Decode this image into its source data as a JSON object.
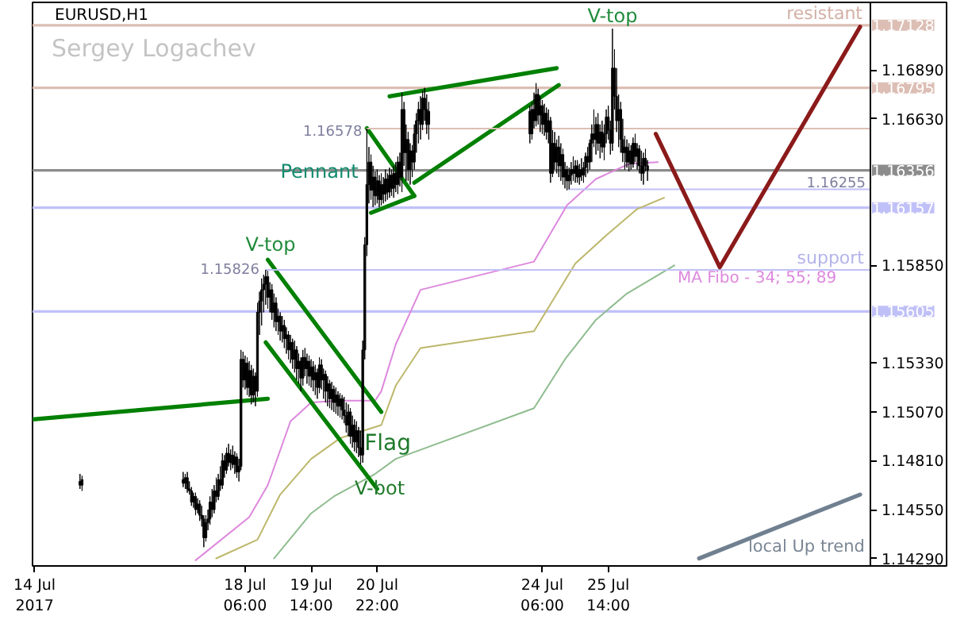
{
  "chart_data": {
    "type": "candlestick",
    "title": "EURUSD,H1",
    "color": "#000000",
    "xlim": [
      "2017-07-13T23:00",
      "2017-07-30T21:00"
    ],
    "ylim": [
      1.1425,
      1.1725
    ],
    "xticks": [
      {
        "value": "2017-07-14",
        "label": "14 Jul 2017"
      },
      {
        "value": "2017-07-18T06:00",
        "label": "18 Jul 06:00"
      },
      {
        "value": "2017-07-19T14:00",
        "label": "19 Jul 14:00"
      },
      {
        "value": "2017-07-20T22:00",
        "label": "20 Jul 22:00"
      },
      {
        "value": "2017-07-24T06:00",
        "label": "24 Jul 06:00"
      },
      {
        "value": "2017-07-25T14:00",
        "label": "25 Jul 14:00"
      }
    ],
    "yticks": [
      {
        "value": 1.1429,
        "label": "1.14290"
      },
      {
        "value": 1.1455,
        "label": "1.14550"
      },
      {
        "value": 1.1481,
        "label": "1.14810"
      },
      {
        "value": 1.1507,
        "label": "1.15070"
      },
      {
        "value": 1.1533,
        "label": "1.15330"
      },
      {
        "value": 1.1585,
        "label": "1.15850"
      },
      {
        "value": 1.1663,
        "label": "1.16630"
      },
      {
        "value": 1.1689,
        "label": "1.16890"
      }
    ],
    "x": [
      "2017-07-14T22:00",
      "2017-07-14T23:00",
      "2017-07-17T00:00",
      "2017-07-17T01:00",
      "2017-07-17T02:00",
      "2017-07-17T03:00",
      "2017-07-17T04:00",
      "2017-07-17T05:00",
      "2017-07-17T06:00",
      "2017-07-17T07:00",
      "2017-07-17T08:00",
      "2017-07-17T09:00",
      "2017-07-17T10:00",
      "2017-07-17T11:00",
      "2017-07-17T12:00",
      "2017-07-17T13:00",
      "2017-07-17T14:00",
      "2017-07-17T15:00",
      "2017-07-17T16:00",
      "2017-07-17T17:00",
      "2017-07-17T18:00",
      "2017-07-17T19:00",
      "2017-07-17T20:00",
      "2017-07-17T21:00",
      "2017-07-17T22:00",
      "2017-07-17T23:00",
      "2017-07-18T00:00",
      "2017-07-18T01:00",
      "2017-07-18T02:00",
      "2017-07-18T03:00",
      "2017-07-18T04:00",
      "2017-07-18T05:00",
      "2017-07-18T06:00",
      "2017-07-18T07:00",
      "2017-07-18T08:00",
      "2017-07-18T09:00",
      "2017-07-18T10:00",
      "2017-07-18T11:00",
      "2017-07-18T12:00",
      "2017-07-18T13:00",
      "2017-07-18T14:00",
      "2017-07-18T15:00",
      "2017-07-18T16:00",
      "2017-07-18T17:00",
      "2017-07-18T18:00",
      "2017-07-18T19:00",
      "2017-07-18T20:00",
      "2017-07-18T21:00",
      "2017-07-18T22:00",
      "2017-07-18T23:00",
      "2017-07-19T00:00",
      "2017-07-19T01:00",
      "2017-07-19T02:00",
      "2017-07-19T03:00",
      "2017-07-19T04:00",
      "2017-07-19T05:00",
      "2017-07-19T06:00",
      "2017-07-19T07:00",
      "2017-07-19T08:00",
      "2017-07-19T09:00",
      "2017-07-19T10:00",
      "2017-07-19T11:00",
      "2017-07-19T12:00",
      "2017-07-19T13:00",
      "2017-07-19T14:00",
      "2017-07-19T15:00",
      "2017-07-19T16:00",
      "2017-07-19T17:00",
      "2017-07-19T18:00",
      "2017-07-19T19:00",
      "2017-07-19T20:00",
      "2017-07-19T21:00",
      "2017-07-19T22:00",
      "2017-07-19T23:00",
      "2017-07-20T00:00",
      "2017-07-20T01:00",
      "2017-07-20T02:00",
      "2017-07-20T03:00",
      "2017-07-20T04:00",
      "2017-07-20T05:00",
      "2017-07-20T06:00",
      "2017-07-20T07:00",
      "2017-07-20T08:00",
      "2017-07-20T09:00",
      "2017-07-20T10:00",
      "2017-07-20T11:00",
      "2017-07-20T12:00",
      "2017-07-20T13:00",
      "2017-07-20T14:00",
      "2017-07-20T15:00",
      "2017-07-20T16:00",
      "2017-07-20T17:00",
      "2017-07-20T18:00",
      "2017-07-20T19:00",
      "2017-07-20T20:00",
      "2017-07-20T21:00",
      "2017-07-20T22:00",
      "2017-07-20T23:00",
      "2017-07-21T00:00",
      "2017-07-21T01:00",
      "2017-07-21T02:00",
      "2017-07-21T03:00",
      "2017-07-21T04:00",
      "2017-07-21T05:00",
      "2017-07-21T06:00",
      "2017-07-21T07:00",
      "2017-07-21T08:00",
      "2017-07-21T09:00",
      "2017-07-21T10:00",
      "2017-07-21T11:00",
      "2017-07-21T12:00",
      "2017-07-21T13:00",
      "2017-07-21T14:00",
      "2017-07-21T15:00",
      "2017-07-21T16:00",
      "2017-07-21T17:00",
      "2017-07-21T18:00",
      "2017-07-21T19:00",
      "2017-07-21T20:00",
      "2017-07-21T21:00",
      "2017-07-21T22:00",
      "2017-07-21T23:00",
      "2017-07-24T00:00",
      "2017-07-24T01:00",
      "2017-07-24T02:00",
      "2017-07-24T03:00",
      "2017-07-24T04:00",
      "2017-07-24T05:00",
      "2017-07-24T06:00",
      "2017-07-24T07:00",
      "2017-07-24T08:00",
      "2017-07-24T09:00",
      "2017-07-24T10:00",
      "2017-07-24T11:00",
      "2017-07-24T12:00",
      "2017-07-24T13:00",
      "2017-07-24T14:00",
      "2017-07-24T15:00",
      "2017-07-24T16:00",
      "2017-07-24T17:00",
      "2017-07-24T18:00",
      "2017-07-24T19:00",
      "2017-07-24T20:00",
      "2017-07-24T21:00",
      "2017-07-24T22:00",
      "2017-07-24T23:00",
      "2017-07-25T00:00",
      "2017-07-25T01:00",
      "2017-07-25T02:00",
      "2017-07-25T03:00",
      "2017-07-25T04:00",
      "2017-07-25T05:00",
      "2017-07-25T06:00",
      "2017-07-25T07:00",
      "2017-07-25T08:00",
      "2017-07-25T09:00",
      "2017-07-25T10:00",
      "2017-07-25T11:00",
      "2017-07-25T12:00",
      "2017-07-25T13:00",
      "2017-07-25T14:00",
      "2017-07-25T15:00",
      "2017-07-25T16:00",
      "2017-07-25T17:00",
      "2017-07-25T18:00",
      "2017-07-25T19:00",
      "2017-07-25T20:00",
      "2017-07-25T21:00",
      "2017-07-25T22:00",
      "2017-07-25T23:00",
      "2017-07-26T00:00",
      "2017-07-26T01:00",
      "2017-07-26T02:00",
      "2017-07-26T03:00",
      "2017-07-26T04:00",
      "2017-07-26T05:00",
      "2017-07-26T06:00",
      "2017-07-26T07:00",
      "2017-07-26T08:00",
      "2017-07-26T09:00"
    ],
    "ohlc": [
      [
        1.147,
        1.1474,
        1.1466,
        1.1468
      ],
      [
        1.1468,
        1.1473,
        1.1465,
        1.1471
      ],
      [
        1.1471,
        1.1475,
        1.1467,
        1.1469
      ],
      [
        1.1469,
        1.1474,
        1.1466,
        1.1472
      ],
      [
        1.1472,
        1.1475,
        1.1464,
        1.1466
      ],
      [
        1.1466,
        1.147,
        1.1463,
        1.1465
      ],
      [
        1.1465,
        1.1467,
        1.1457,
        1.1459
      ],
      [
        1.1459,
        1.1464,
        1.1456,
        1.1462
      ],
      [
        1.1462,
        1.1464,
        1.1452,
        1.1455
      ],
      [
        1.1455,
        1.1461,
        1.1453,
        1.1458
      ],
      [
        1.1458,
        1.146,
        1.1449,
        1.1452
      ],
      [
        1.1452,
        1.1457,
        1.1446,
        1.145
      ],
      [
        1.145,
        1.1452,
        1.1435,
        1.144
      ],
      [
        1.144,
        1.1452,
        1.1438,
        1.1448
      ],
      [
        1.1448,
        1.1455,
        1.1444,
        1.145
      ],
      [
        1.145,
        1.1462,
        1.1447,
        1.1459
      ],
      [
        1.1459,
        1.1466,
        1.1451,
        1.1455
      ],
      [
        1.1455,
        1.1468,
        1.1453,
        1.1465
      ],
      [
        1.1465,
        1.1472,
        1.1459,
        1.1462
      ],
      [
        1.1462,
        1.1474,
        1.146,
        1.1471
      ],
      [
        1.1471,
        1.1478,
        1.1465,
        1.1468
      ],
      [
        1.1468,
        1.1485,
        1.1466,
        1.1481
      ],
      [
        1.1481,
        1.1484,
        1.1472,
        1.1476
      ],
      [
        1.1476,
        1.1488,
        1.1474,
        1.1485
      ],
      [
        1.1485,
        1.149,
        1.1478,
        1.148
      ],
      [
        1.148,
        1.1487,
        1.1476,
        1.1484
      ],
      [
        1.1484,
        1.1489,
        1.1477,
        1.1479
      ],
      [
        1.1479,
        1.1486,
        1.1474,
        1.1483
      ],
      [
        1.1483,
        1.1485,
        1.1472,
        1.1475
      ],
      [
        1.1475,
        1.1482,
        1.147,
        1.1478
      ],
      [
        1.1478,
        1.154,
        1.1476,
        1.1535
      ],
      [
        1.1535,
        1.1539,
        1.152,
        1.1524
      ],
      [
        1.1524,
        1.1537,
        1.1519,
        1.1533
      ],
      [
        1.1533,
        1.1536,
        1.1516,
        1.152
      ],
      [
        1.152,
        1.1534,
        1.1515,
        1.1529
      ],
      [
        1.1529,
        1.1532,
        1.1511,
        1.1516
      ],
      [
        1.1516,
        1.153,
        1.1512,
        1.1526
      ],
      [
        1.1526,
        1.1528,
        1.151,
        1.1518
      ],
      [
        1.1518,
        1.1565,
        1.1515,
        1.156
      ],
      [
        1.156,
        1.1571,
        1.1548,
        1.1566
      ],
      [
        1.1566,
        1.1578,
        1.1553,
        1.1572
      ],
      [
        1.1572,
        1.158,
        1.156,
        1.1575
      ],
      [
        1.1575,
        1.15826,
        1.1564,
        1.1579
      ],
      [
        1.1579,
        1.1582,
        1.1562,
        1.1568
      ],
      [
        1.1568,
        1.1576,
        1.156,
        1.1572
      ],
      [
        1.1572,
        1.1575,
        1.1556,
        1.156
      ],
      [
        1.156,
        1.157,
        1.1552,
        1.1565
      ],
      [
        1.1565,
        1.1568,
        1.155,
        1.1555
      ],
      [
        1.1555,
        1.1562,
        1.1548,
        1.1558
      ],
      [
        1.1558,
        1.156,
        1.1545,
        1.155
      ],
      [
        1.155,
        1.1558,
        1.1544,
        1.1553
      ],
      [
        1.1553,
        1.1556,
        1.1541,
        1.1546
      ],
      [
        1.1546,
        1.1552,
        1.1538,
        1.1548
      ],
      [
        1.1548,
        1.155,
        1.1535,
        1.154
      ],
      [
        1.154,
        1.1548,
        1.1533,
        1.1544
      ],
      [
        1.1544,
        1.1546,
        1.153,
        1.1535
      ],
      [
        1.1535,
        1.1545,
        1.1528,
        1.154
      ],
      [
        1.154,
        1.1542,
        1.1524,
        1.153
      ],
      [
        1.153,
        1.1538,
        1.1522,
        1.1534
      ],
      [
        1.1534,
        1.1536,
        1.1518,
        1.1525
      ],
      [
        1.1525,
        1.154,
        1.1521,
        1.1536
      ],
      [
        1.1536,
        1.1541,
        1.1526,
        1.153
      ],
      [
        1.153,
        1.1538,
        1.1522,
        1.1534
      ],
      [
        1.1534,
        1.1537,
        1.1521,
        1.1526
      ],
      [
        1.1526,
        1.1535,
        1.152,
        1.1531
      ],
      [
        1.1531,
        1.1534,
        1.1518,
        1.1524
      ],
      [
        1.1524,
        1.1532,
        1.1516,
        1.1528
      ],
      [
        1.1528,
        1.153,
        1.1514,
        1.152
      ],
      [
        1.152,
        1.1536,
        1.1517,
        1.1532
      ],
      [
        1.1532,
        1.1535,
        1.1519,
        1.1524
      ],
      [
        1.1524,
        1.153,
        1.1514,
        1.1527
      ],
      [
        1.1527,
        1.1529,
        1.1512,
        1.1518
      ],
      [
        1.1518,
        1.1526,
        1.151,
        1.1522
      ],
      [
        1.1522,
        1.1524,
        1.1509,
        1.1514
      ],
      [
        1.1514,
        1.1523,
        1.1508,
        1.1519
      ],
      [
        1.1519,
        1.1521,
        1.1507,
        1.1512
      ],
      [
        1.1512,
        1.152,
        1.1506,
        1.1516
      ],
      [
        1.1516,
        1.1518,
        1.1505,
        1.151
      ],
      [
        1.151,
        1.1517,
        1.1504,
        1.1514
      ],
      [
        1.1514,
        1.1516,
        1.1503,
        1.1508
      ],
      [
        1.1508,
        1.1515,
        1.1501,
        1.1505
      ],
      [
        1.1505,
        1.1512,
        1.1496,
        1.15
      ],
      [
        1.15,
        1.1511,
        1.1494,
        1.1507
      ],
      [
        1.1507,
        1.1509,
        1.149,
        1.1494
      ],
      [
        1.1494,
        1.1505,
        1.1488,
        1.15
      ],
      [
        1.15,
        1.1503,
        1.1486,
        1.1491
      ],
      [
        1.1491,
        1.1502,
        1.1485,
        1.1497
      ],
      [
        1.1497,
        1.1499,
        1.1483,
        1.1488
      ],
      [
        1.1488,
        1.1497,
        1.1479,
        1.1484
      ],
      [
        1.1484,
        1.1545,
        1.148,
        1.154
      ],
      [
        1.154,
        1.16,
        1.1535,
        1.1596
      ],
      [
        1.1596,
        1.16578,
        1.159,
        1.1628
      ],
      [
        1.1628,
        1.1648,
        1.1618,
        1.164
      ],
      [
        1.164,
        1.1644,
        1.162,
        1.1625
      ],
      [
        1.1625,
        1.1638,
        1.1616,
        1.1632
      ],
      [
        1.1632,
        1.1635,
        1.1617,
        1.1622
      ],
      [
        1.1622,
        1.1636,
        1.1618,
        1.163
      ],
      [
        1.163,
        1.1633,
        1.1616,
        1.162
      ],
      [
        1.162,
        1.1634,
        1.1617,
        1.1628
      ],
      [
        1.1628,
        1.1632,
        1.1618,
        1.1623
      ],
      [
        1.1623,
        1.1636,
        1.1619,
        1.1631
      ],
      [
        1.1631,
        1.1634,
        1.162,
        1.1624
      ],
      [
        1.1624,
        1.1637,
        1.1621,
        1.1633
      ],
      [
        1.1633,
        1.1636,
        1.1622,
        1.1626
      ],
      [
        1.1626,
        1.1638,
        1.1621,
        1.1634
      ],
      [
        1.1634,
        1.164,
        1.1624,
        1.1628
      ],
      [
        1.1628,
        1.1643,
        1.1623,
        1.164
      ],
      [
        1.164,
        1.1645,
        1.1627,
        1.1632
      ],
      [
        1.1632,
        1.1677,
        1.1624,
        1.1668
      ],
      [
        1.1668,
        1.1672,
        1.1638,
        1.1645
      ],
      [
        1.1645,
        1.166,
        1.163,
        1.1652
      ],
      [
        1.1652,
        1.1656,
        1.163,
        1.1636
      ],
      [
        1.1636,
        1.165,
        1.1628,
        1.1646
      ],
      [
        1.1646,
        1.1649,
        1.1632,
        1.164
      ],
      [
        1.164,
        1.166,
        1.1636,
        1.1655
      ],
      [
        1.1655,
        1.1666,
        1.1645,
        1.1662
      ],
      [
        1.1662,
        1.1672,
        1.165,
        1.1668
      ],
      [
        1.1668,
        1.1675,
        1.1652,
        1.166
      ],
      [
        1.166,
        1.1678,
        1.1657,
        1.1674
      ],
      [
        1.1674,
        1.16795,
        1.1662,
        1.1668
      ],
      [
        1.1668,
        1.1676,
        1.1655,
        1.166
      ],
      [
        1.166,
        1.1672,
        1.1652,
        1.1667
      ],
      [
        1.1667,
        1.167,
        1.165,
        1.1655
      ],
      [
        1.1655,
        1.1672,
        1.1652,
        1.1668
      ],
      [
        1.1668,
        1.1677,
        1.1658,
        1.1662
      ],
      [
        1.1662,
        1.1682,
        1.1659,
        1.1676
      ],
      [
        1.1676,
        1.1679,
        1.166,
        1.1665
      ],
      [
        1.1665,
        1.1675,
        1.1656,
        1.167
      ],
      [
        1.167,
        1.1673,
        1.1655,
        1.166
      ],
      [
        1.166,
        1.1671,
        1.1654,
        1.1666
      ],
      [
        1.1666,
        1.1669,
        1.1652,
        1.1656
      ],
      [
        1.1656,
        1.1668,
        1.165,
        1.1662
      ],
      [
        1.1662,
        1.1664,
        1.1629,
        1.1634
      ],
      [
        1.1634,
        1.1657,
        1.1632,
        1.165
      ],
      [
        1.165,
        1.1656,
        1.1636,
        1.164
      ],
      [
        1.164,
        1.1652,
        1.1634,
        1.1648
      ],
      [
        1.1648,
        1.1654,
        1.1632,
        1.1638
      ],
      [
        1.1638,
        1.165,
        1.163,
        1.1644
      ],
      [
        1.1644,
        1.1647,
        1.1628,
        1.1632
      ],
      [
        1.1632,
        1.164,
        1.1626,
        1.1636
      ],
      [
        1.1636,
        1.1638,
        1.1625,
        1.163
      ],
      [
        1.163,
        1.1637,
        1.16255,
        1.1633
      ],
      [
        1.1633,
        1.164,
        1.1628,
        1.1636
      ],
      [
        1.1636,
        1.1643,
        1.163,
        1.1634
      ],
      [
        1.1634,
        1.1641,
        1.1629,
        1.1638
      ],
      [
        1.1638,
        1.1641,
        1.1629,
        1.1632
      ],
      [
        1.1632,
        1.1639,
        1.1628,
        1.1636
      ],
      [
        1.1636,
        1.1642,
        1.163,
        1.1633
      ],
      [
        1.1633,
        1.164,
        1.1629,
        1.1637
      ],
      [
        1.1637,
        1.1645,
        1.1632,
        1.1643
      ],
      [
        1.1643,
        1.1648,
        1.1634,
        1.164
      ],
      [
        1.164,
        1.1652,
        1.1636,
        1.165
      ],
      [
        1.165,
        1.166,
        1.164,
        1.1655
      ],
      [
        1.1655,
        1.1668,
        1.1648,
        1.1652
      ],
      [
        1.1652,
        1.1664,
        1.1644,
        1.166
      ],
      [
        1.166,
        1.1666,
        1.1646,
        1.165
      ],
      [
        1.165,
        1.166,
        1.1642,
        1.1656
      ],
      [
        1.1656,
        1.1662,
        1.1645,
        1.1648
      ],
      [
        1.1648,
        1.166,
        1.1641,
        1.1655
      ],
      [
        1.1655,
        1.1668,
        1.165,
        1.1664
      ],
      [
        1.1664,
        1.167,
        1.1652,
        1.1657
      ],
      [
        1.1657,
        1.1662,
        1.1644,
        1.165
      ],
      [
        1.165,
        1.1711,
        1.1646,
        1.169
      ],
      [
        1.169,
        1.17,
        1.1668,
        1.1675
      ],
      [
        1.1675,
        1.169,
        1.1656,
        1.1662
      ],
      [
        1.1662,
        1.1676,
        1.1648,
        1.1668
      ],
      [
        1.1668,
        1.1672,
        1.1645,
        1.1652
      ],
      [
        1.1652,
        1.1663,
        1.164,
        1.1645
      ],
      [
        1.1645,
        1.1654,
        1.1636,
        1.1648
      ],
      [
        1.1648,
        1.1652,
        1.1637,
        1.164
      ],
      [
        1.164,
        1.165,
        1.1635,
        1.1646
      ],
      [
        1.1646,
        1.1649,
        1.1636,
        1.1639
      ],
      [
        1.1639,
        1.1653,
        1.1637,
        1.165
      ],
      [
        1.165,
        1.1655,
        1.164,
        1.1643
      ],
      [
        1.1643,
        1.165,
        1.1636,
        1.1647
      ],
      [
        1.1647,
        1.1649,
        1.1634,
        1.1638
      ],
      [
        1.1638,
        1.1646,
        1.163,
        1.1634
      ],
      [
        1.1634,
        1.1645,
        1.1628,
        1.1642
      ],
      [
        1.1642,
        1.1647,
        1.1635,
        1.1638
      ],
      [
        1.1638,
        1.1641,
        1.163,
        1.16356
      ]
    ],
    "series": [
      {
        "type": "line",
        "color": "#dd88dd",
        "x": [
          "2017-07-17T06:00",
          "2017-07-18T08:00",
          "2017-07-18T17:00",
          "2017-07-19T04:00",
          "2017-07-19T14:00",
          "2017-07-20T04:00",
          "2017-07-20T21:00",
          "2017-07-21T00:00",
          "2017-07-21T07:00",
          "2017-07-21T19:00",
          "2017-07-24T02:00",
          "2017-07-24T18:00",
          "2017-07-25T08:00",
          "2017-07-26T00:00",
          "2017-07-26T14:00"
        ],
        "values": [
          1.1428,
          1.1451,
          1.1468,
          1.1502,
          1.1512,
          1.1513,
          1.1513,
          1.1518,
          1.1543,
          1.1572,
          1.1587,
          1.1617,
          1.1631,
          1.1639,
          1.164
        ]
      },
      {
        "type": "line",
        "color": "#bdb76b",
        "x": [
          "2017-07-17T16:00",
          "2017-07-18T12:00",
          "2017-07-18T23:00",
          "2017-07-19T14:00",
          "2017-07-20T04:00",
          "2017-07-21T00:00",
          "2017-07-21T07:00",
          "2017-07-21T19:00",
          "2017-07-24T02:00",
          "2017-07-24T22:00",
          "2017-07-25T13:00",
          "2017-07-26T04:00",
          "2017-07-26T17:00"
        ],
        "values": [
          1.1429,
          1.1439,
          1.1463,
          1.1482,
          1.1493,
          1.15,
          1.1521,
          1.1541,
          1.155,
          1.1586,
          1.1601,
          1.1615,
          1.1621
        ]
      },
      {
        "type": "line",
        "color": "#8fbc8f",
        "x": [
          "2017-07-18T20:00",
          "2017-07-19T14:00",
          "2017-07-20T01:00",
          "2017-07-20T21:00",
          "2017-07-21T07:00",
          "2017-07-24T02:00",
          "2017-07-24T17:00",
          "2017-07-25T08:00",
          "2017-07-25T23:00",
          "2017-07-26T22:00"
        ],
        "values": [
          1.1429,
          1.1453,
          1.1462,
          1.1474,
          1.1482,
          1.1509,
          1.1535,
          1.1556,
          1.157,
          1.1585
        ]
      },
      {
        "type": "line",
        "color": "#008000",
        "x": [
          "2017-07-13T23:00",
          "2017-07-18T17:00"
        ],
        "values": [
          1.1503,
          1.1514
        ]
      },
      {
        "type": "line",
        "color": "#008000",
        "x": [
          "2017-07-18T17:00",
          "2017-07-21T00:00"
        ],
        "values": [
          1.1588,
          1.1507
        ]
      },
      {
        "type": "line",
        "color": "#008000",
        "x": [
          "2017-07-18T16:00",
          "2017-07-20T22:00"
        ],
        "values": [
          1.1544,
          1.1466
        ]
      },
      {
        "type": "line",
        "color": "#008000",
        "x": [
          "2017-07-20T17:00",
          "2017-07-21T16:00"
        ],
        "values": [
          1.1658,
          1.1622
        ]
      },
      {
        "type": "line",
        "color": "#008000",
        "x": [
          "2017-07-20T19:00",
          "2017-07-21T16:00"
        ],
        "values": [
          1.1613,
          1.1622
        ]
      },
      {
        "type": "line",
        "color": "#008000",
        "x": [
          "2017-07-21T04:00",
          "2017-07-24T13:00"
        ],
        "values": [
          1.1675,
          1.169
        ]
      },
      {
        "type": "line",
        "color": "#008000",
        "x": [
          "2017-07-21T16:00",
          "2017-07-24T14:00"
        ],
        "values": [
          1.1629,
          1.1681
        ]
      },
      {
        "type": "line",
        "color": "#dcbeb4",
        "x": [
          "2017-07-20T17:00",
          "2017-07-30T21:00"
        ],
        "values": [
          1.16578,
          1.16578
        ]
      },
      {
        "type": "line",
        "color": "#c0c0f8",
        "x": [
          "2017-07-24T19:00",
          "2017-07-30T21:00"
        ],
        "values": [
          1.16255,
          1.16255
        ]
      },
      {
        "type": "line",
        "color": "#c0c0f8",
        "x": [
          "2017-07-18T16:00",
          "2017-07-30T21:00"
        ],
        "values": [
          1.15826,
          1.15826
        ]
      },
      {
        "type": "line",
        "color": "#8b1a1a",
        "x": [
          "2017-07-26T13:00",
          "2017-07-27T20:00",
          "2017-07-30T16:00"
        ],
        "values": [
          1.1655,
          1.1584,
          1.1712
        ]
      },
      {
        "type": "line",
        "color": "#708090",
        "x": [
          "2017-07-27T10:00",
          "2017-07-30T16:00"
        ],
        "values": [
          1.1429,
          1.1463
        ]
      }
    ],
    "ref_lines": [
      {
        "axis": "y",
        "value": 1.17128,
        "label": "1.17128",
        "color": "#dcbeb4"
      },
      {
        "axis": "y",
        "value": 1.16795,
        "label": "1.16795",
        "color": "#dcbeb4"
      },
      {
        "axis": "y",
        "value": 1.16356,
        "label": "1.16356",
        "color": "#8c8c8c"
      },
      {
        "axis": "y",
        "value": 1.16157,
        "label": "1.16157",
        "color": "#c0c0f8"
      },
      {
        "axis": "y",
        "value": 1.15605,
        "label": "1.15605",
        "color": "#c0c0f8"
      }
    ],
    "annotations": [
      "Sergey Logachev",
      {
        "text": "V-top",
        "x": "2017-07-25T16:00",
        "y": 1.1711
      },
      {
        "text": "V-top",
        "x": "2017-07-18T16:00",
        "y": 1.15826
      },
      {
        "text": "1.15826",
        "x": "2017-07-18T16:00",
        "y": 1.15826
      },
      {
        "text": "1.16578",
        "x": "2017-07-20T17:00",
        "y": 1.16578
      },
      {
        "text": "Pennant",
        "x": "2017-07-20T19:00",
        "y": 1.1613
      },
      {
        "text": "Flag",
        "x": "2017-07-21T00:00",
        "y": 1.1507
      },
      {
        "text": "V-bot",
        "x": "2017-07-20T14:00",
        "y": 1.1479
      },
      {
        "text": "1.16255",
        "x": "2017-07-30T21:00",
        "y": 1.16255
      },
      {
        "text": "resistant",
        "x": "2017-07-30T21:00",
        "y": 1.17128
      },
      {
        "text": "support",
        "x": "2017-07-30T21:00",
        "y": 1.15826
      },
      {
        "text": "MA Fibo - 34; 55; 89",
        "x": "2017-07-26T22:00",
        "y": 1.1585
      },
      {
        "text": "local Up trend",
        "x": "2017-07-29T14:00",
        "y": 1.1452
      }
    ]
  }
}
